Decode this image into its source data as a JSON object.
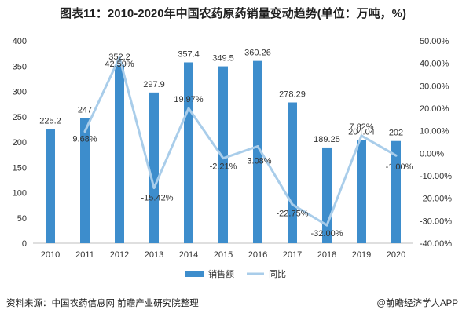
{
  "chart_data": {
    "type": "bar",
    "title": "图表11：2010-2020年中国农药原药销量变动趋势(单位：万吨，%)",
    "categories": [
      "2010",
      "2011",
      "2012",
      "2013",
      "2014",
      "2015",
      "2016",
      "2017",
      "2018",
      "2019",
      "2020"
    ],
    "series": [
      {
        "name": "销售额",
        "type": "bar",
        "axis": "left",
        "values": [
          225.2,
          247,
          352.2,
          297.9,
          357.4,
          349.5,
          360.26,
          278.29,
          189.25,
          204.04,
          202
        ],
        "labels": [
          "225.2",
          "247",
          "352.2",
          "297.9",
          "357.4",
          "349.5",
          "360.26",
          "278.29",
          "189.25",
          "204.04",
          "202"
        ]
      },
      {
        "name": "同比",
        "type": "line",
        "axis": "right",
        "values": [
          null,
          9.68,
          42.59,
          -15.42,
          19.97,
          -2.21,
          3.08,
          -22.75,
          -32.0,
          7.82,
          -1.0
        ],
        "labels": [
          "",
          "9.68%",
          "42.59%",
          "-15.42%",
          "19.97%",
          "-2.21%",
          "3.08%",
          "-22.75%",
          "-32.00%",
          "7.82%",
          "-1.00%"
        ]
      }
    ],
    "ylim_left": [
      0,
      400
    ],
    "ylim_right": [
      -40,
      50
    ],
    "left_ticks": [
      "0",
      "50",
      "100",
      "150",
      "200",
      "250",
      "300",
      "350",
      "400"
    ],
    "right_ticks": [
      "-40.00%",
      "-30.00%",
      "-20.00%",
      "-10.00%",
      "0.00%",
      "10.00%",
      "20.00%",
      "30.00%",
      "40.00%",
      "50.00%"
    ],
    "legend_position": "bottom",
    "grid": false,
    "colors": {
      "bar": "#3d8dcc",
      "line": "#a9cdea",
      "text": "#333333"
    }
  },
  "footer": {
    "source": "资料来源：中国农药信息网 前瞻产业研究院整理",
    "brand": "@前瞻经济学人APP"
  }
}
